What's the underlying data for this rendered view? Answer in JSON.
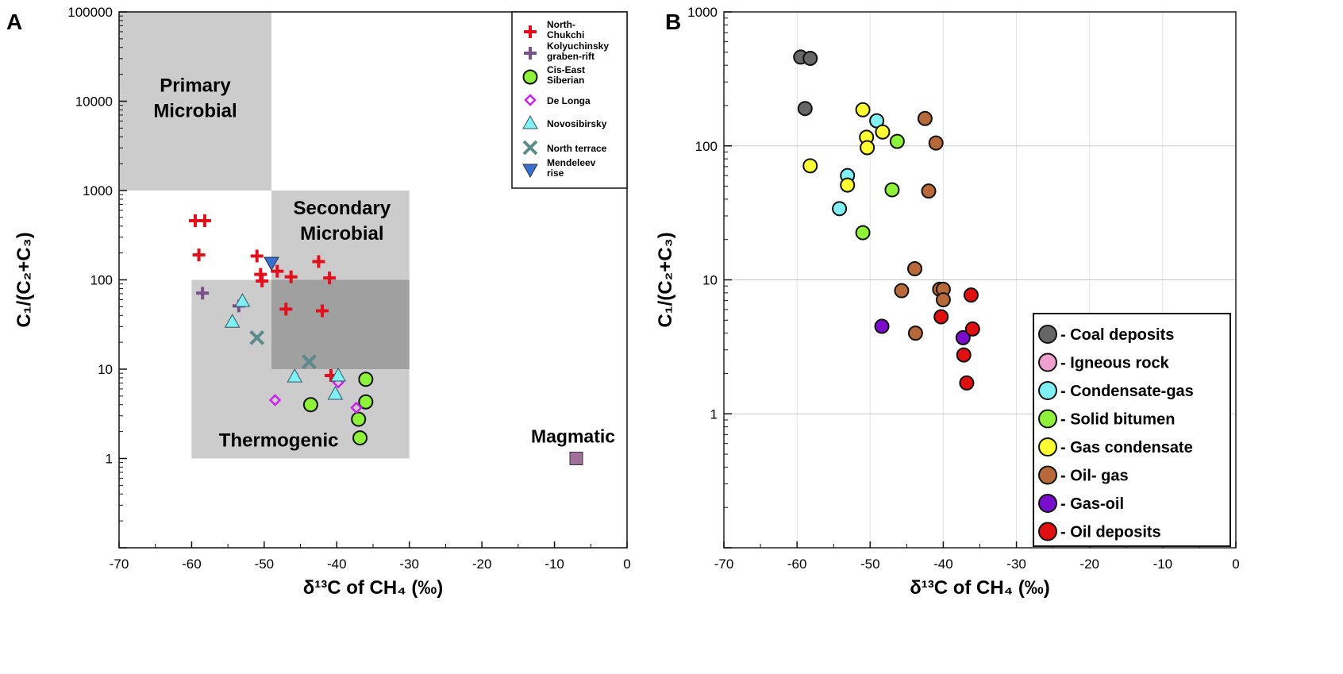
{
  "chart_data": [
    {
      "type": "scatter",
      "panel_label": "A",
      "xlabel": "δ¹³C of CH₄ (‰)",
      "ylabel": "C₁/(C₂+C₃)",
      "xlim": [
        -70,
        0
      ],
      "ylim": [
        0.1,
        100000
      ],
      "yscale": "log",
      "x_ticks": [
        "-70",
        "-60",
        "-50",
        "-40",
        "-30",
        "-20",
        "-10",
        "0"
      ],
      "y_ticks": [
        "1",
        "10",
        "100",
        "1000",
        "10000",
        "100000"
      ],
      "legend_position": "top-right",
      "regions": [
        {
          "label": [
            "Primary",
            "Microbial"
          ],
          "x": [
            -70,
            -49
          ],
          "y": [
            1000,
            100000
          ],
          "color": "#cccccc"
        },
        {
          "label": [
            "Secondary",
            "Microbial"
          ],
          "x": [
            -49,
            -30
          ],
          "y": [
            10,
            1000
          ],
          "color": "#cccccc"
        },
        {
          "label": [
            "Thermogenic"
          ],
          "x": [
            -60,
            -30
          ],
          "y": [
            1,
            100
          ],
          "color": "#cccccc"
        },
        {
          "label": [],
          "x": [
            -49,
            -30
          ],
          "y": [
            10,
            100
          ],
          "color": "#a0a0a0"
        }
      ],
      "annotations": [
        {
          "text": "Magmatic",
          "x": -7,
          "y": 1
        }
      ],
      "series": [
        {
          "name": "North-Chukchi",
          "marker": "plus",
          "color": "#e0101c",
          "points": [
            [
              -59.5,
              460
            ],
            [
              -58.2,
              460
            ],
            [
              -59,
              190
            ],
            [
              -51,
              185
            ],
            [
              -42.5,
              160
            ],
            [
              -48.2,
              125
            ],
            [
              -50.5,
              115
            ],
            [
              -50.3,
              97
            ],
            [
              -46.3,
              108
            ],
            [
              -41,
              105
            ],
            [
              -47,
              47
            ],
            [
              -42,
              45
            ],
            [
              -40.8,
              8.5
            ]
          ]
        },
        {
          "name": "Kolyuchinsky graben-rift",
          "marker": "plus",
          "color": "#7a4f8a",
          "points": [
            [
              -58.5,
              71
            ],
            [
              -53.5,
              51
            ]
          ]
        },
        {
          "name": "Cis-East Siberian",
          "marker": "circle",
          "color": "#8ef23a",
          "points": [
            [
              -36,
              7.7
            ],
            [
              -36,
              4.3
            ],
            [
              -43.6,
              4.0
            ],
            [
              -37,
              2.75
            ],
            [
              -36.8,
              1.7
            ]
          ]
        },
        {
          "name": "De Longa",
          "marker": "diamond",
          "color": "#cc22ee",
          "points": [
            [
              -48.5,
              4.5
            ],
            [
              -39.8,
              7.1
            ],
            [
              -37.3,
              3.7
            ]
          ]
        },
        {
          "name": "Novosibirsky",
          "marker": "triangle",
          "color": "#80f0f4",
          "points": [
            [
              -53,
              58
            ],
            [
              -54.4,
              34
            ],
            [
              -45.8,
              8.3
            ],
            [
              -39.8,
              8.5
            ],
            [
              -40.2,
              5.3
            ]
          ]
        },
        {
          "name": "North terrace",
          "marker": "x",
          "color": "#5a8a8a",
          "points": [
            [
              -51,
              22.5
            ],
            [
              -43.8,
              12.1
            ]
          ]
        },
        {
          "name": "Mendeleev rise",
          "marker": "triangle-down",
          "color": "#3a6fd0",
          "points": [
            [
              -49,
              155
            ]
          ]
        },
        {
          "name": "Magmatic",
          "marker": "square",
          "color": "#a0709a",
          "legend": false,
          "points": [
            [
              -7,
              1
            ]
          ]
        }
      ],
      "legend_labels": [
        [
          "North-",
          "Chukchi"
        ],
        [
          "Kolyuchinsky",
          "graben-rift"
        ],
        [
          "Cis-East",
          "Siberian"
        ],
        [
          "De Longa"
        ],
        [
          "Novosibirsky"
        ],
        [
          "North terrace"
        ],
        [
          "Mendeleev",
          "rise"
        ]
      ]
    },
    {
      "type": "scatter",
      "panel_label": "B",
      "xlabel": "δ¹³C of CH₄ (‰)",
      "ylabel": "C₁/(C₂+C₃)",
      "xlim": [
        -70,
        0
      ],
      "ylim": [
        0.1,
        1000
      ],
      "yscale": "log",
      "grid": true,
      "x_ticks": [
        "-70",
        "-60",
        "-50",
        "-40",
        "-30",
        "-20",
        "-10",
        "0"
      ],
      "y_ticks": [
        "1",
        "10",
        "100",
        "1000"
      ],
      "legend_position": "bottom-right",
      "series": [
        {
          "name": "- Coal deposits",
          "color": "#666666",
          "points": [
            [
              -59.5,
              460
            ],
            [
              -58.2,
              450
            ],
            [
              -58.9,
              190
            ]
          ]
        },
        {
          "name": "- Igneous rock",
          "color": "#f0a0d0",
          "points": []
        },
        {
          "name": "- Condensate-gas",
          "color": "#80f0f4",
          "points": [
            [
              -49.1,
              154
            ],
            [
              -53.1,
              60
            ],
            [
              -54.2,
              34
            ]
          ]
        },
        {
          "name": "- Solid bitumen",
          "color": "#8ef23a",
          "points": [
            [
              -46.3,
              108
            ],
            [
              -47,
              47
            ],
            [
              -51,
              22.5
            ]
          ]
        },
        {
          "name": "- Gas condensate",
          "color": "#ffff33",
          "points": [
            [
              -51,
              186
            ],
            [
              -48.3,
              127
            ],
            [
              -50.5,
              116
            ],
            [
              -50.4,
              97
            ],
            [
              -58.2,
              71
            ],
            [
              -53.1,
              51
            ]
          ]
        },
        {
          "name": "- Oil- gas",
          "color": "#b8693a",
          "points": [
            [
              -42.5,
              160
            ],
            [
              -41,
              105
            ],
            [
              -42,
              46
            ],
            [
              -43.9,
              12.1
            ],
            [
              -45.7,
              8.3
            ],
            [
              -40.5,
              8.5
            ],
            [
              -40,
              8.5
            ],
            [
              -40,
              7.1
            ],
            [
              -43.8,
              4.0
            ]
          ]
        },
        {
          "name": "- Gas-oil",
          "color": "#7a0ccc",
          "points": [
            [
              -48.4,
              4.5
            ],
            [
              -37.3,
              3.7
            ]
          ]
        },
        {
          "name": "- Oil deposits",
          "color": "#e01010",
          "points": [
            [
              -36.2,
              7.7
            ],
            [
              -40.3,
              5.3
            ],
            [
              -36,
              4.3
            ],
            [
              -37.2,
              2.75
            ],
            [
              -36.8,
              1.7
            ]
          ]
        }
      ]
    }
  ]
}
